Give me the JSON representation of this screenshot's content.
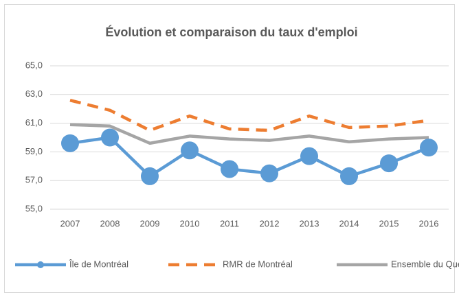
{
  "chart_data": {
    "type": "line",
    "title": "Évolution et comparaison du taux d'emploi",
    "categories": [
      "2007",
      "2008",
      "2009",
      "2010",
      "2011",
      "2012",
      "2013",
      "2014",
      "2015",
      "2016"
    ],
    "series": [
      {
        "name": "Île de Montréal",
        "color": "#5b9bd5",
        "marker": "circle",
        "line_style": "solid",
        "values": [
          59.6,
          60.0,
          57.3,
          59.1,
          57.8,
          57.5,
          58.7,
          57.3,
          58.2,
          59.3
        ]
      },
      {
        "name": "RMR de Montréal",
        "color": "#ed7d31",
        "marker": "none",
        "line_style": "dashed",
        "values": [
          62.6,
          61.9,
          60.5,
          61.5,
          60.6,
          60.5,
          61.5,
          60.7,
          60.8,
          61.2
        ]
      },
      {
        "name": "Ensemble du Québec",
        "color": "#a5a5a5",
        "marker": "none",
        "line_style": "solid",
        "values": [
          60.9,
          60.8,
          59.6,
          60.1,
          59.9,
          59.8,
          60.1,
          59.7,
          59.9,
          60.0
        ]
      }
    ],
    "ylim": [
      55,
      65
    ],
    "yticks": [
      {
        "value": 55,
        "label": "55,0"
      },
      {
        "value": 57,
        "label": "57,0"
      },
      {
        "value": 59,
        "label": "59,0"
      },
      {
        "value": 61,
        "label": "61,0"
      },
      {
        "value": 63,
        "label": "63,0"
      },
      {
        "value": 65,
        "label": "65,0"
      }
    ],
    "grid": true,
    "legend": "bottom"
  }
}
